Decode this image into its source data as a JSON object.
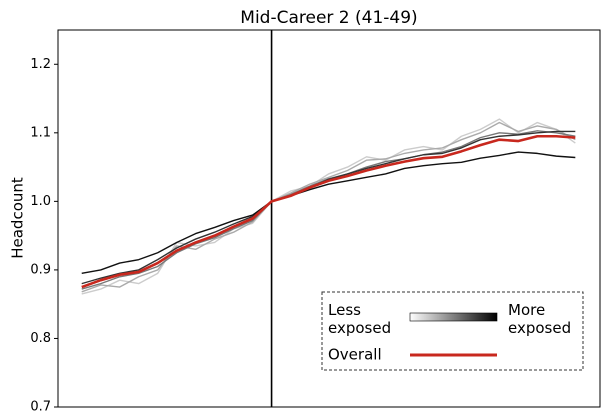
{
  "chart_data": {
    "type": "line",
    "title": "Mid-Career 2 (41-49)",
    "y_label": "Headcount",
    "x": [
      -20,
      -18,
      -16,
      -14,
      -12,
      -10,
      -8,
      -6,
      -4,
      -2,
      0,
      2,
      4,
      6,
      8,
      10,
      12,
      14,
      16,
      18,
      20,
      22,
      24,
      26,
      28,
      30,
      32
    ],
    "xlim": [
      -22.5,
      34.6
    ],
    "vline": 0,
    "ylim": [
      0.7,
      1.25
    ],
    "yticks": [
      0.7,
      0.8,
      0.9,
      {
        "value": 1,
        "label": "1.0"
      },
      1.1,
      1.2
    ],
    "series": [
      {
        "color": "#cccccc",
        "values": [
          0.865,
          0.872,
          0.885,
          0.88,
          0.895,
          0.94,
          0.935,
          0.94,
          0.96,
          0.968,
          1.0,
          1.015,
          1.022,
          1.04,
          1.05,
          1.065,
          1.06,
          1.075,
          1.08,
          1.075,
          1.095,
          1.105,
          1.12,
          1.1,
          1.115,
          1.105,
          1.085
        ]
      },
      {
        "color": "#aaaaaa",
        "values": [
          0.868,
          0.878,
          0.875,
          0.89,
          0.9,
          0.935,
          0.93,
          0.945,
          0.955,
          0.97,
          1.0,
          1.012,
          1.025,
          1.035,
          1.045,
          1.06,
          1.062,
          1.07,
          1.075,
          1.078,
          1.09,
          1.1,
          1.115,
          1.102,
          1.11,
          1.105,
          1.09
        ]
      },
      {
        "color": "#777777",
        "values": [
          0.872,
          0.88,
          0.89,
          0.895,
          0.905,
          0.925,
          0.938,
          0.947,
          0.96,
          0.972,
          1.0,
          1.01,
          1.022,
          1.033,
          1.04,
          1.05,
          1.058,
          1.062,
          1.068,
          1.072,
          1.08,
          1.093,
          1.1,
          1.098,
          1.103,
          1.1,
          1.095
        ]
      },
      {
        "color": "#333333",
        "values": [
          0.88,
          0.888,
          0.895,
          0.9,
          0.915,
          0.932,
          0.945,
          0.955,
          0.967,
          0.978,
          1.0,
          1.008,
          1.02,
          1.032,
          1.04,
          1.048,
          1.055,
          1.062,
          1.068,
          1.07,
          1.078,
          1.09,
          1.095,
          1.097,
          1.1,
          1.102,
          1.102
        ]
      },
      {
        "color": "#111111",
        "values": [
          0.895,
          0.9,
          0.91,
          0.915,
          0.925,
          0.94,
          0.953,
          0.962,
          0.972,
          0.98,
          1.0,
          1.008,
          1.017,
          1.025,
          1.03,
          1.035,
          1.04,
          1.048,
          1.052,
          1.055,
          1.057,
          1.063,
          1.067,
          1.072,
          1.07,
          1.066,
          1.064
        ]
      },
      {
        "name": "Overall",
        "color": "#c8281e",
        "values": [
          0.875,
          0.885,
          0.893,
          0.897,
          0.91,
          0.928,
          0.94,
          0.95,
          0.963,
          0.975,
          1.0,
          1.008,
          1.02,
          1.03,
          1.037,
          1.045,
          1.052,
          1.058,
          1.063,
          1.065,
          1.073,
          1.082,
          1.09,
          1.088,
          1.095,
          1.095,
          1.093
        ]
      }
    ],
    "legend": {
      "loc": "lower right",
      "low_label": "Less exposed",
      "high_label": "More exposed"
    }
  }
}
